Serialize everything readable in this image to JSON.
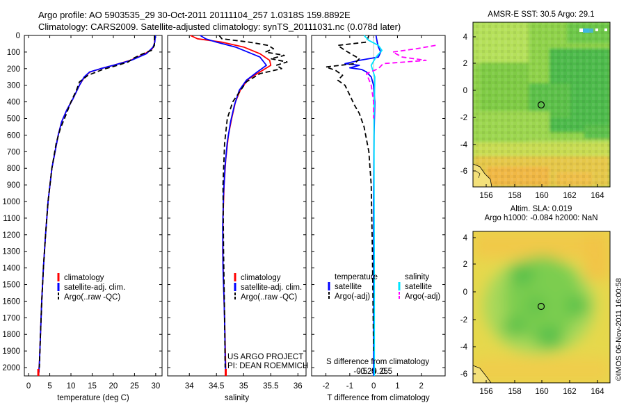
{
  "header": {
    "line1": "Argo profile: AO 5903535_29 30-Oct-2011 20111104_257 1.0318S 159.8892E",
    "line2": "Climatology: CARS2009. Satellite-adjusted climatology: synTS_20111031.nc (0.078d later)"
  },
  "colors": {
    "climatology": "#ff0000",
    "satellite": "#0000ff",
    "argo": "#000000",
    "sal_satellite": "#00e5ff",
    "sal_argo": "#ff00ff"
  },
  "chart_data": [
    {
      "id": "temperature",
      "type": "line",
      "xlabel": "temperature (deg C)",
      "xlim": [
        -1,
        31.5
      ],
      "ylim": [
        0,
        2050
      ],
      "xticks": [
        0,
        5,
        10,
        15,
        20,
        25,
        30
      ],
      "xtick_labels": [
        "0",
        "5",
        "10",
        "15",
        "20",
        "25",
        "30"
      ],
      "yticks": [
        0,
        100,
        200,
        300,
        400,
        500,
        600,
        700,
        800,
        900,
        1000,
        1100,
        1200,
        1300,
        1400,
        1500,
        1600,
        1700,
        1800,
        1900,
        2000
      ],
      "ytick_labels": [
        "0",
        "100",
        "200",
        "300",
        "400",
        "500",
        "600",
        "700",
        "800",
        "900",
        "1000",
        "1100",
        "1200",
        "1300",
        "1400",
        "1500",
        "1600",
        "1700",
        "1800",
        "1900",
        "2000"
      ],
      "legend": [
        "climatology",
        "satellite-adj. clim.",
        "Argo(..raw -QC)"
      ],
      "series": [
        {
          "name": "climatology",
          "style": "solid",
          "x": [
            29.8,
            29.7,
            29.2,
            27.5,
            24,
            20,
            17,
            14.5,
            13.2,
            12,
            10.5,
            9,
            7.8,
            7,
            5.5,
            4.6,
            4,
            3.5,
            3.1,
            2.8,
            2.6,
            2.4,
            2.3
          ],
          "y": [
            0,
            50,
            80,
            110,
            150,
            180,
            200,
            220,
            250,
            300,
            380,
            450,
            520,
            600,
            800,
            1000,
            1200,
            1400,
            1600,
            1800,
            1950,
            2030,
            2050
          ]
        },
        {
          "name": "satellite-adj. clim.",
          "style": "solid",
          "x": [
            29.9,
            29.8,
            29.4,
            27.8,
            24.2,
            20,
            17,
            14.4,
            13.1,
            12,
            10.5,
            9,
            7.8,
            7,
            5.5,
            4.6,
            4,
            3.5,
            3.1,
            2.8,
            2.6,
            2.45
          ],
          "y": [
            0,
            40,
            70,
            110,
            150,
            180,
            200,
            220,
            250,
            300,
            380,
            450,
            520,
            600,
            800,
            1000,
            1200,
            1400,
            1600,
            1800,
            1950,
            2030
          ]
        },
        {
          "name": "Argo(..raw -QC)",
          "style": "dashed",
          "x": [
            29.7,
            29.7,
            29,
            27,
            24.5,
            23.5,
            21,
            17.5,
            14,
            12,
            11.3,
            10,
            8.8,
            7.5,
            6.5,
            5.5,
            4.6,
            4,
            3.5,
            3.1,
            2.8,
            2.55
          ],
          "y": [
            0,
            60,
            90,
            110,
            140,
            160,
            180,
            205,
            240,
            280,
            330,
            400,
            480,
            560,
            650,
            800,
            1000,
            1200,
            1400,
            1600,
            1800,
            2000
          ]
        }
      ]
    },
    {
      "id": "salinity",
      "type": "line",
      "xlabel": "salinity",
      "xlim": [
        33.6,
        36.15
      ],
      "ylim": [
        0,
        2050
      ],
      "xticks": [
        34,
        34.5,
        35,
        35.5,
        36
      ],
      "xtick_labels": [
        "34",
        "34.5",
        "35",
        "35.5",
        "36"
      ],
      "legend": [
        "climatology",
        "satellite-adj. clim.",
        "Argo(..raw -QC)"
      ],
      "credit": [
        "US ARGO PROJECT",
        "PI: DEAN ROEMMICH"
      ],
      "series": [
        {
          "name": "climatology",
          "style": "solid",
          "x": [
            34.02,
            34.15,
            34.6,
            35.0,
            35.3,
            35.48,
            35.5,
            35.35,
            35.1,
            34.95,
            34.85,
            34.78,
            34.72,
            34.67,
            34.64,
            34.62,
            34.615,
            34.63,
            34.65,
            34.66,
            34.67,
            34.67
          ],
          "y": [
            0,
            20,
            40,
            70,
            110,
            150,
            180,
            210,
            260,
            320,
            400,
            500,
            600,
            750,
            900,
            1100,
            1300,
            1500,
            1700,
            1850,
            2000,
            2050
          ]
        },
        {
          "name": "satellite-adj. clim.",
          "style": "solid",
          "x": [
            34.2,
            34.3,
            34.5,
            34.85,
            35.3,
            35.42,
            35.25,
            35.05,
            34.92,
            34.83,
            34.76,
            34.7,
            34.66,
            34.63,
            34.615,
            34.62,
            34.64,
            34.655,
            34.66,
            34.67
          ],
          "y": [
            0,
            20,
            40,
            70,
            130,
            180,
            220,
            270,
            330,
            420,
            520,
            640,
            780,
            950,
            1150,
            1400,
            1600,
            1800,
            1950,
            2030
          ]
        },
        {
          "name": "Argo(..raw -QC)",
          "style": "dashed",
          "x": [
            34.55,
            34.6,
            35.1,
            35.45,
            35.55,
            35.4,
            35.75,
            35.5,
            35.8,
            35.6,
            35.7,
            35.3,
            35.05,
            34.8,
            34.7,
            34.65,
            34.62,
            34.63,
            34.65,
            34.66
          ],
          "y": [
            0,
            20,
            40,
            60,
            80,
            100,
            120,
            140,
            160,
            180,
            200,
            230,
            280,
            400,
            500,
            650,
            900,
            1300,
            1700,
            2000
          ]
        }
      ]
    },
    {
      "id": "difference",
      "type": "line",
      "xlabel": "T difference from climatology",
      "top_label": "S difference from climatology",
      "xlim": [
        -2.6,
        3.0
      ],
      "ylim": [
        0,
        2050
      ],
      "xticks": [
        -2,
        -1,
        0,
        1,
        2
      ],
      "xtick_labels": [
        "-2",
        "-1",
        "0",
        "1",
        "2"
      ],
      "top_ticks": [
        -0.5,
        -0.25,
        0,
        0.25,
        0.5
      ],
      "top_tick_labels": [
        "-0.5",
        "-0.25",
        "0",
        "0.25",
        "0.5"
      ],
      "legend_temperature": {
        "title": "temperature",
        "items": [
          "satellite",
          "Argo(-adj)"
        ]
      },
      "legend_salinity": {
        "title": "salinity",
        "items": [
          "satellite",
          "Argo(-adj)"
        ]
      },
      "series": [
        {
          "name": "T satellite",
          "style": "solid",
          "x": [
            0.1,
            0.15,
            0.2,
            0.3,
            0.2,
            -0.6,
            -1.2,
            -0.6,
            -1.0,
            -0.5,
            -0.3,
            -0.1,
            0.0,
            0.05,
            0.02,
            0,
            0
          ],
          "y": [
            0,
            40,
            70,
            100,
            130,
            150,
            170,
            180,
            195,
            205,
            220,
            250,
            300,
            400,
            600,
            1000,
            2050
          ]
        },
        {
          "name": "T Argo(-adj)",
          "style": "dashed",
          "x": [
            -0.2,
            -0.3,
            -1.5,
            -1.2,
            -0.6,
            -0.8,
            -2.0,
            -1.6,
            -1.3,
            -1.5,
            -1.2,
            -1.0,
            -0.8,
            -0.6,
            -0.4,
            -0.2,
            -0.1,
            -0.05,
            0
          ],
          "y": [
            0,
            40,
            60,
            90,
            140,
            170,
            190,
            210,
            240,
            270,
            300,
            360,
            420,
            470,
            550,
            700,
            900,
            1300,
            1900
          ]
        },
        {
          "name": "S satellite",
          "style": "solid",
          "x": [
            -0.4,
            -0.2,
            0.2,
            0.35,
            0.1,
            -0.1,
            0.05,
            0.04,
            0.02,
            0.02,
            0.03,
            0.03
          ],
          "y": [
            0,
            30,
            60,
            90,
            130,
            180,
            250,
            350,
            500,
            900,
            1500,
            2050
          ]
        },
        {
          "name": "S Argo(-adj)",
          "style": "dashed",
          "x": [
            2.6,
            1.8,
            0.8,
            1.2,
            2.2,
            0.4,
            0.2,
            -0.3,
            -0.1,
            0.0,
            0
          ],
          "y": [
            60,
            80,
            100,
            130,
            150,
            170,
            200,
            230,
            300,
            400,
            500
          ]
        }
      ]
    }
  ],
  "maps": [
    {
      "id": "sst",
      "title": "AMSR-E SST: 30.5 Argo: 29.1",
      "xticks": [
        "156",
        "158",
        "160",
        "162",
        "164"
      ],
      "yticks": [
        "4",
        "2",
        "0",
        "-2",
        "-4",
        "-6"
      ]
    },
    {
      "id": "sla",
      "title_line1": "Altim. SLA: 0.019",
      "title_line2": "Argo h1000: -0.084 h2000: NaN",
      "xticks": [
        "156",
        "158",
        "160",
        "162",
        "164"
      ],
      "yticks": [
        "4",
        "2",
        "0",
        "-2",
        "-4",
        "-6"
      ]
    }
  ],
  "footer_stamp": "©IMOS 06-Nov-2011 16:00:58"
}
